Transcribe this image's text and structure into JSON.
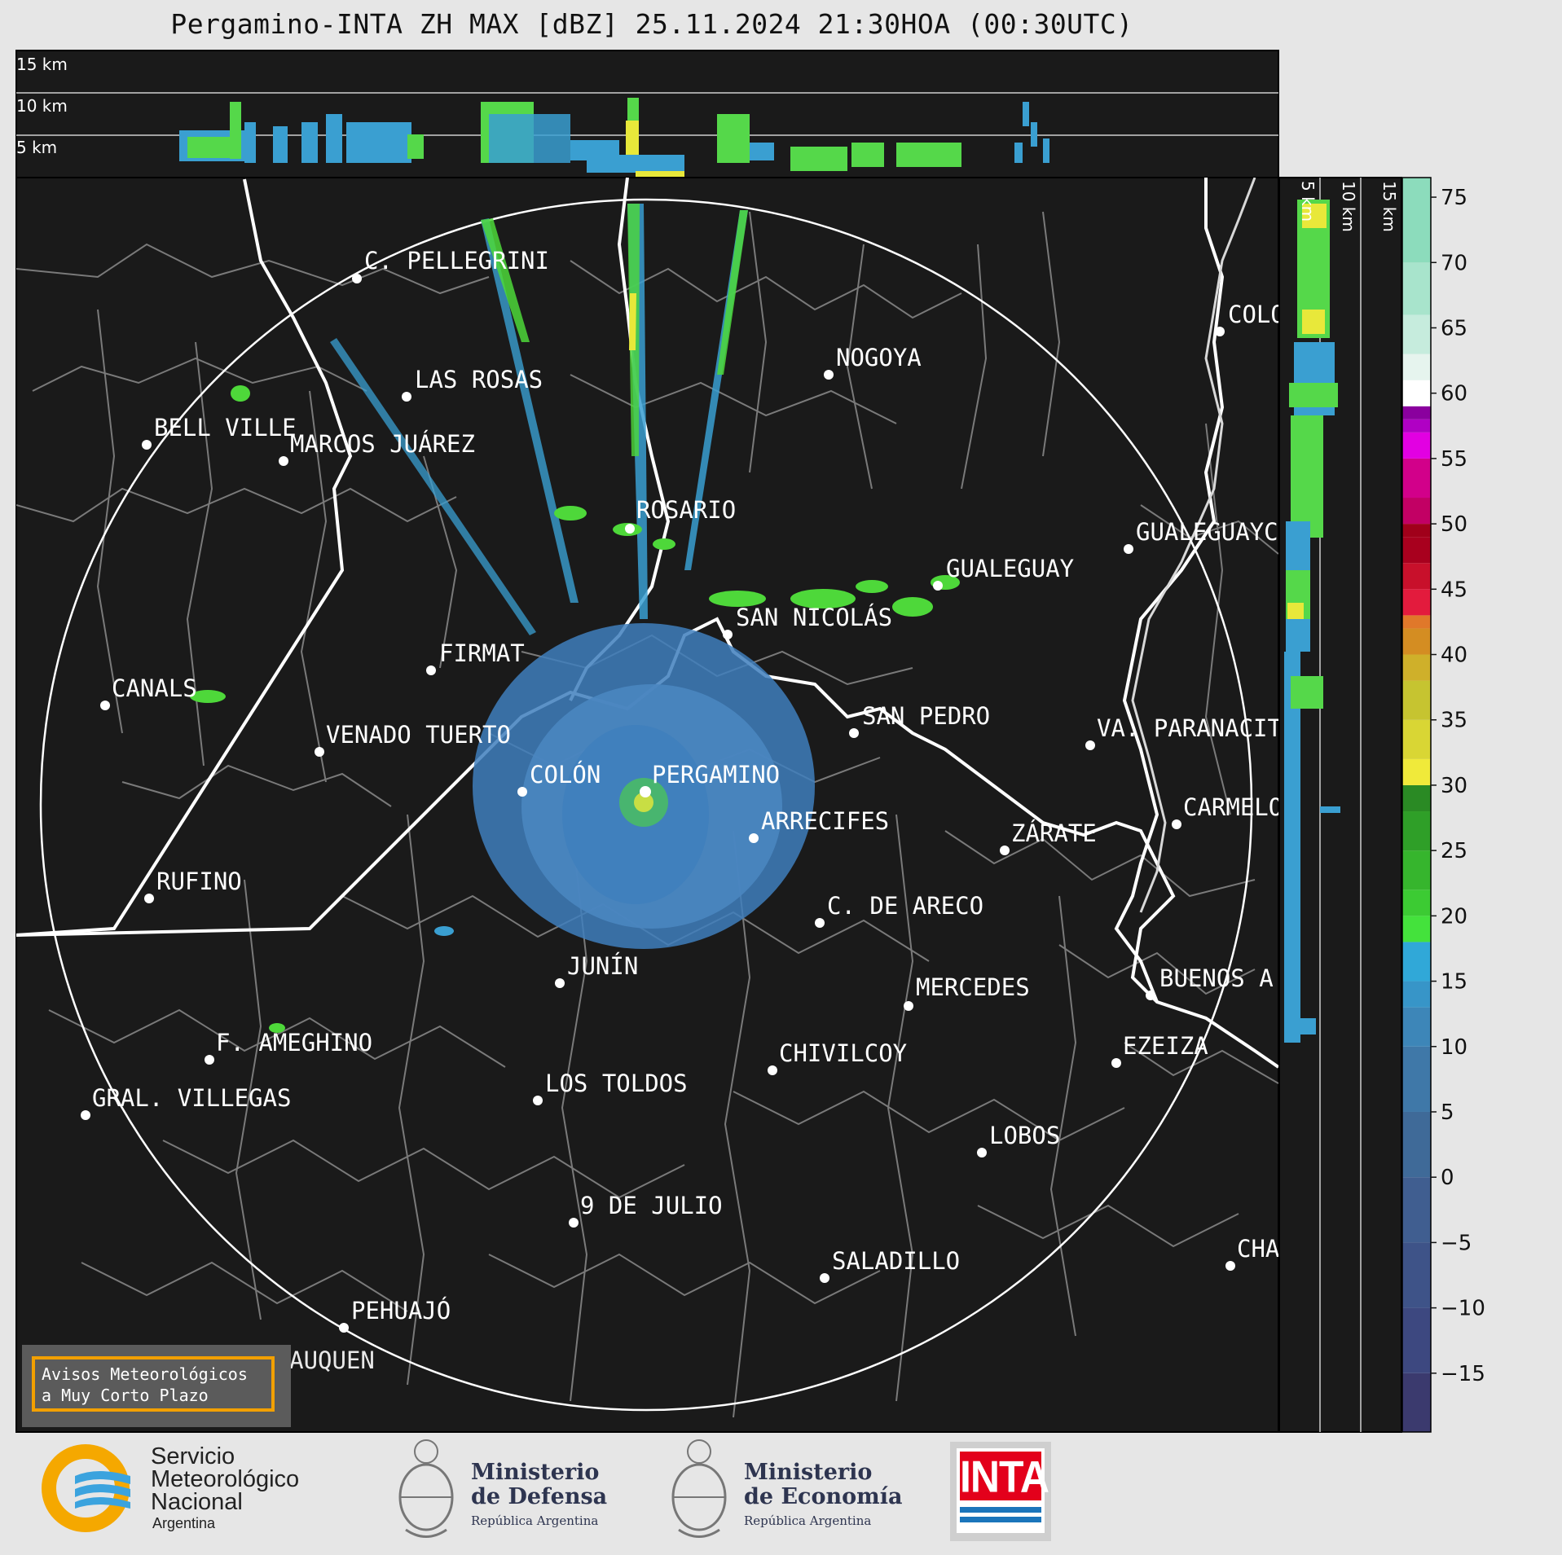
{
  "header": {
    "title": "Pergamino-INTA ZH MAX [dBZ] 25.11.2024 21:30HOA (00:30UTC)"
  },
  "height_labels_top": [
    "15 km",
    "10 km",
    "5 km"
  ],
  "height_labels_side": [
    "5 km",
    "10 km",
    "15 km"
  ],
  "colorbar": {
    "ticks": [
      "75",
      "70",
      "65",
      "60",
      "55",
      "50",
      "45",
      "40",
      "35",
      "30",
      "25",
      "20",
      "15",
      "10",
      "5",
      "0",
      "−5",
      "−10",
      "−15"
    ]
  },
  "cities": {
    "c_pellegrini": "C. PELLEGRINI",
    "las_rosas": "LAS ROSAS",
    "bell_ville": "BELL VILLE",
    "marcos_juarez": "MARCOS JUÁREZ",
    "nogoya": "NOGOYA",
    "colon_er": "COLO",
    "rosario": "ROSARIO",
    "gualeguaychu": "GUALEGUAYC",
    "gualeguay": "GUALEGUAY",
    "san_nicolas": "SAN NICOLÁS",
    "firmat": "FIRMAT",
    "canals": "CANALS",
    "san_pedro": "SAN PEDRO",
    "venado_tuerto": "VENADO TUERTO",
    "paranacito": "VA. PARANACIT",
    "colon": "COLÓN",
    "pergamino": "PERGAMINO",
    "carmelo": "CARMELO",
    "arrecifes": "ARRECIFES",
    "zarate": "ZÁRATE",
    "rufino": "RUFINO",
    "c_de_areco": "C. DE ARECO",
    "junin": "JUNÍN",
    "buenos_aires": "BUENOS A",
    "mercedes": "MERCEDES",
    "ezeiza": "EZEIZA",
    "f_ameghino": "F. AMEGHINO",
    "chivilcoy": "CHIVILCOY",
    "los_toldos": "LOS TOLDOS",
    "gral_villegas": "GRAL. VILLEGAS",
    "lobos": "LOBOS",
    "nueve_de_julio": "9 DE JULIO",
    "chascomus": "CHA",
    "saladillo": "SALADILLO",
    "pehuajo": "PEHUAJÓ",
    "trenque_lauquen": "TRENQUE LAUQUEN"
  },
  "notice": {
    "line1": "Avisos Meteorológicos",
    "line2": "a Muy Corto Plazo"
  },
  "logos": {
    "smn": {
      "line1": "Servicio",
      "line2": "Meteorológico",
      "line3": "Nacional",
      "line4": "Argentina"
    },
    "defensa": {
      "line1": "Ministerio",
      "line2": "de Defensa",
      "line3": "República Argentina"
    },
    "economia": {
      "line1": "Ministerio",
      "line2": "de Economía",
      "line3": "República Argentina"
    },
    "inta": {
      "text": "INTA"
    }
  },
  "colors": {
    "map_bg": "#1a1a1a",
    "border_gray": "#7a7a7a",
    "river_white": "#ffffff",
    "echo_blue": "#3f7fbd",
    "echo_green": "#4ed83a",
    "echo_yellow": "#e8e83a",
    "notice_border": "#f2a000"
  }
}
